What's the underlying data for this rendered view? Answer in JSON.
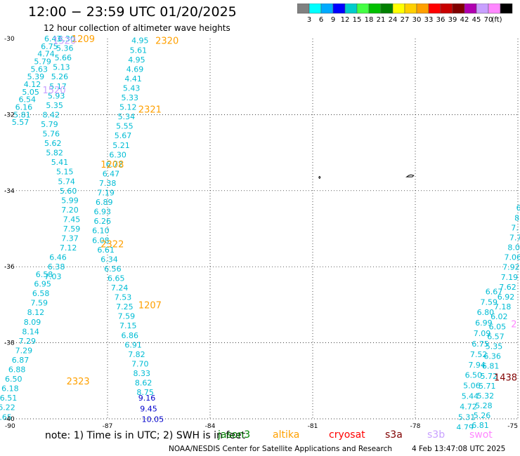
{
  "header": {
    "title": "12:00 − 23:59 UTC 01/20/2025",
    "subtitle": "12 hour collection of altimeter wave heights"
  },
  "colorbar": {
    "colors": [
      "#808080",
      "#00ffff",
      "#00aaff",
      "#0000ff",
      "#00cccc",
      "#44ff44",
      "#00c000",
      "#008000",
      "#ffff00",
      "#ffd000",
      "#ffa000",
      "#ff0000",
      "#c80000",
      "#800000",
      "#b000b0",
      "#c8a0ff",
      "#ff88ff",
      "#000000"
    ],
    "labels": [
      "3",
      "6",
      "9",
      "12",
      "15",
      "18",
      "21",
      "24",
      "27",
      "30",
      "33",
      "36",
      "39",
      "42",
      "45",
      "70",
      "(ft)"
    ]
  },
  "map": {
    "lat_ticks": [
      "-30",
      "-32",
      "-34",
      "-36",
      "-38",
      "-40"
    ],
    "lon_ticks": [
      "-90",
      "-87",
      "-84",
      "-81",
      "-78",
      "-75"
    ],
    "pass_labels": [
      {
        "text": "1209",
        "lat": -30.0,
        "lon": -88.05,
        "color": "#ffa000"
      },
      {
        "text": "2320",
        "lat": -30.05,
        "lon": -85.6,
        "color": "#ffa000"
      },
      {
        "text": "1520",
        "lat": -30.05,
        "lon": -88.6,
        "color": "#c8a0ff"
      },
      {
        "text": "1520",
        "lat": -31.35,
        "lon": -88.9,
        "color": "#c8a0ff"
      },
      {
        "text": "2321",
        "lat": -31.85,
        "lon": -86.1,
        "color": "#ffa000"
      },
      {
        "text": "1208",
        "lat": -33.3,
        "lon": -87.2,
        "color": "#ffa000"
      },
      {
        "text": "2322",
        "lat": -35.4,
        "lon": -87.2,
        "color": "#ffa000"
      },
      {
        "text": "1207",
        "lat": -37.0,
        "lon": -86.1,
        "color": "#ffa000"
      },
      {
        "text": "2323",
        "lat": -39.0,
        "lon": -88.2,
        "color": "#ffa000"
      },
      {
        "text": "1438",
        "lat": -38.9,
        "lon": -75.7,
        "color": "#800000"
      },
      {
        "text": "2",
        "lat": -37.5,
        "lon": -75.2,
        "color": "#ff88ff"
      }
    ],
    "tracks": [
      {
        "lat0": -30.0,
        "dlat": 0.2,
        "points": [
          {
            "lon": -88.85,
            "v": "6.43"
          },
          {
            "lon": -88.95,
            "v": "6.75"
          },
          {
            "lon": -89.05,
            "v": "4.74"
          },
          {
            "lon": -89.15,
            "v": "5.79"
          },
          {
            "lon": -89.25,
            "v": "5.63"
          },
          {
            "lon": -89.35,
            "v": "5.39"
          },
          {
            "lon": -89.45,
            "v": "4.12"
          },
          {
            "lon": -89.5,
            "v": "5.05"
          },
          {
            "lon": -89.6,
            "v": "6.54"
          },
          {
            "lon": -89.7,
            "v": "6.16"
          },
          {
            "lon": -89.75,
            "v": "5.81"
          },
          {
            "lon": -89.8,
            "v": "5.57"
          }
        ]
      },
      {
        "lat0": -30.0,
        "dlat": 0.25,
        "points": [
          {
            "lon": -88.45,
            "v": "6.30"
          },
          {
            "lon": -88.5,
            "v": "5.36"
          },
          {
            "lon": -88.55,
            "v": "5.66"
          },
          {
            "lon": -88.6,
            "v": "5.13"
          },
          {
            "lon": -88.65,
            "v": "5.26"
          },
          {
            "lon": -88.7,
            "v": "5.17"
          },
          {
            "lon": -88.75,
            "v": "5.93"
          },
          {
            "lon": -88.8,
            "v": "5.35"
          },
          {
            "lon": -88.9,
            "v": "8.42"
          },
          {
            "lon": -88.95,
            "v": "5.79"
          },
          {
            "lon": -88.9,
            "v": "5.76"
          },
          {
            "lon": -88.85,
            "v": "5.62"
          },
          {
            "lon": -88.8,
            "v": "5.82"
          },
          {
            "lon": -88.65,
            "v": "5.41"
          },
          {
            "lon": -88.5,
            "v": "5.15"
          },
          {
            "lon": -88.45,
            "v": "5.74"
          },
          {
            "lon": -88.4,
            "v": "5.60"
          },
          {
            "lon": -88.35,
            "v": "5.99"
          },
          {
            "lon": -88.35,
            "v": "7.20"
          },
          {
            "lon": -88.3,
            "v": "7.45"
          },
          {
            "lon": -88.3,
            "v": "7.59"
          },
          {
            "lon": -88.35,
            "v": "7.37"
          },
          {
            "lon": -88.4,
            "v": "7.12"
          },
          {
            "lon": -88.7,
            "v": "6.46"
          },
          {
            "lon": -88.75,
            "v": "6.38"
          },
          {
            "lon": -88.85,
            "v": "7.03"
          }
        ]
      },
      {
        "lat0": -36.2,
        "dlat": 0.25,
        "points": [
          {
            "lon": -89.1,
            "v": "6.58"
          },
          {
            "lon": -89.15,
            "v": "6.95"
          },
          {
            "lon": -89.2,
            "v": "6.58"
          },
          {
            "lon": -89.25,
            "v": "7.59"
          },
          {
            "lon": -89.35,
            "v": "8.12"
          },
          {
            "lon": -89.45,
            "v": "8.09"
          },
          {
            "lon": -89.5,
            "v": "8.14"
          },
          {
            "lon": -89.6,
            "v": "7.29"
          },
          {
            "lon": -89.7,
            "v": "7.29"
          },
          {
            "lon": -89.8,
            "v": "6.87"
          },
          {
            "lon": -89.9,
            "v": "6.88"
          },
          {
            "lon": -90.0,
            "v": "6.50"
          },
          {
            "lon": -90.1,
            "v": "6.18"
          },
          {
            "lon": -90.15,
            "v": "6.51"
          },
          {
            "lon": -90.2,
            "v": "6.22"
          },
          {
            "lon": -90.3,
            "v": "6.65"
          }
        ]
      },
      {
        "lat0": -30.05,
        "dlat": 0.25,
        "points": [
          {
            "lon": -86.3,
            "v": "4.95"
          },
          {
            "lon": -86.35,
            "v": "5.61"
          },
          {
            "lon": -86.4,
            "v": "4.95"
          },
          {
            "lon": -86.45,
            "v": "4.69"
          },
          {
            "lon": -86.5,
            "v": "4.41"
          },
          {
            "lon": -86.55,
            "v": "5.43"
          },
          {
            "lon": -86.6,
            "v": "5.33"
          },
          {
            "lon": -86.65,
            "v": "5.12"
          },
          {
            "lon": -86.7,
            "v": "5.34"
          },
          {
            "lon": -86.75,
            "v": "5.55"
          },
          {
            "lon": -86.8,
            "v": "5.67"
          },
          {
            "lon": -86.85,
            "v": "5.21"
          },
          {
            "lon": -86.95,
            "v": "6.30"
          },
          {
            "lon": -87.05,
            "v": "6.72"
          },
          {
            "lon": -87.15,
            "v": "6.47"
          },
          {
            "lon": -87.25,
            "v": "7.38"
          },
          {
            "lon": -87.3,
            "v": "7.19"
          },
          {
            "lon": -87.35,
            "v": "6.89"
          },
          {
            "lon": -87.4,
            "v": "6.93"
          },
          {
            "lon": -87.4,
            "v": "6.26"
          },
          {
            "lon": -87.45,
            "v": "6.10"
          },
          {
            "lon": -87.45,
            "v": "6.08"
          },
          {
            "lon": -87.3,
            "v": "6.61"
          },
          {
            "lon": -87.2,
            "v": "6.34"
          },
          {
            "lon": -87.1,
            "v": "6.56"
          },
          {
            "lon": -87.0,
            "v": "6.65"
          },
          {
            "lon": -86.9,
            "v": "7.24"
          },
          {
            "lon": -86.8,
            "v": "7.53"
          },
          {
            "lon": -86.75,
            "v": "7.25"
          },
          {
            "lon": -86.7,
            "v": "7.59"
          },
          {
            "lon": -86.65,
            "v": "7.15"
          },
          {
            "lon": -86.6,
            "v": "6.86"
          },
          {
            "lon": -86.5,
            "v": "6.91"
          },
          {
            "lon": -86.4,
            "v": "7.82"
          },
          {
            "lon": -86.3,
            "v": "7.70"
          },
          {
            "lon": -86.25,
            "v": "8.33"
          },
          {
            "lon": -86.2,
            "v": "8.62"
          },
          {
            "lon": -86.15,
            "v": "8.75"
          }
        ]
      },
      {
        "lat0": -39.45,
        "dlat": 0.28,
        "points": [
          {
            "lon": -86.1,
            "v": "9.16",
            "c": "#0000cc"
          },
          {
            "lon": -86.05,
            "v": "9.45",
            "c": "#0000cc"
          },
          {
            "lon": -86.0,
            "v": "10.05",
            "c": "#0000cc"
          }
        ]
      },
      {
        "lat0": -34.45,
        "dlat": 0.26,
        "points": [
          {
            "lon": -75.05,
            "v": "6"
          },
          {
            "lon": -75.1,
            "v": "8."
          },
          {
            "lon": -75.2,
            "v": "7."
          },
          {
            "lon": -75.25,
            "v": "7.7"
          },
          {
            "lon": -75.3,
            "v": "8.0"
          },
          {
            "lon": -75.4,
            "v": "7.06"
          },
          {
            "lon": -75.45,
            "v": "7.92"
          },
          {
            "lon": -75.5,
            "v": "7.19"
          },
          {
            "lon": -75.55,
            "v": "7.62"
          },
          {
            "lon": -75.6,
            "v": "6.92"
          },
          {
            "lon": -75.7,
            "v": "7.18"
          },
          {
            "lon": -75.8,
            "v": "6.02"
          },
          {
            "lon": -75.85,
            "v": "6.05"
          },
          {
            "lon": -75.9,
            "v": "6.57"
          },
          {
            "lon": -75.95,
            "v": "5.35"
          },
          {
            "lon": -76.0,
            "v": "6.36"
          },
          {
            "lon": -76.05,
            "v": "6.81"
          },
          {
            "lon": -76.1,
            "v": "5.72"
          },
          {
            "lon": -76.15,
            "v": "5.71"
          },
          {
            "lon": -76.2,
            "v": "5.32"
          },
          {
            "lon": -76.25,
            "v": "5.28"
          },
          {
            "lon": -76.3,
            "v": "5.26"
          },
          {
            "lon": -76.35,
            "v": "6.81"
          },
          {
            "lon": -76.4,
            "v": "5.73"
          }
        ]
      },
      {
        "lat0": -36.65,
        "dlat": 0.275,
        "points": [
          {
            "lon": -75.95,
            "v": "6.67"
          },
          {
            "lon": -76.1,
            "v": "7.59"
          },
          {
            "lon": -76.2,
            "v": "6.80"
          },
          {
            "lon": -76.25,
            "v": "6.99"
          },
          {
            "lon": -76.3,
            "v": "7.09"
          },
          {
            "lon": -76.35,
            "v": "6.75"
          },
          {
            "lon": -76.4,
            "v": "7.52"
          },
          {
            "lon": -76.45,
            "v": "7.94"
          },
          {
            "lon": -76.55,
            "v": "6.50"
          },
          {
            "lon": -76.6,
            "v": "5.06"
          },
          {
            "lon": -76.65,
            "v": "5.44"
          },
          {
            "lon": -76.7,
            "v": "4.72"
          },
          {
            "lon": -76.75,
            "v": "5.31"
          },
          {
            "lon": -76.8,
            "v": "4.79"
          },
          {
            "lon": -76.85,
            "v": "4.38"
          }
        ]
      }
    ]
  },
  "note_text": "note:  1) Time is in UTC;  2) SWH is in feet",
  "legend": [
    {
      "name": "jason3",
      "color": "#008000"
    },
    {
      "name": "altika",
      "color": "#ffa000"
    },
    {
      "name": "cryosat",
      "color": "#ff0000"
    },
    {
      "name": "s3a",
      "color": "#800000"
    },
    {
      "name": "s3b",
      "color": "#c8a0ff"
    },
    {
      "name": "swot",
      "color": "#ff88ff"
    }
  ],
  "credit": "NOAA/NESDIS Center for Satellite Applications and Research",
  "generated": "4 Feb 13:47:08 UTC 2025"
}
